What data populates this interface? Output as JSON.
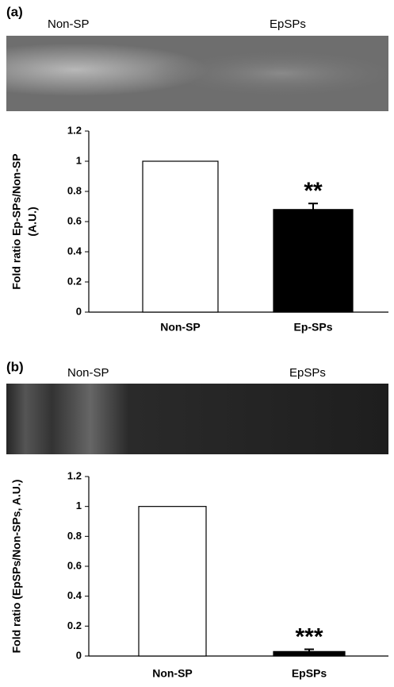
{
  "chart_data": [
    {
      "type": "bar",
      "panel_label": "(a)",
      "lane_labels": [
        "Non-SP",
        "EpSPs"
      ],
      "ylabel_lines": [
        "Fold ratio Ep-SPs/Non-SP",
        "(A.U.)"
      ],
      "categories": [
        "Non-SP",
        "Ep-SPs"
      ],
      "values": [
        1,
        0.68
      ],
      "errors": [
        null,
        0.04
      ],
      "colors": [
        "#ffffff",
        "#000000"
      ],
      "annotation": "**",
      "ylim": [
        0,
        1.2
      ],
      "yticks": [
        0,
        0.2,
        0.4,
        0.6,
        0.8,
        1,
        1.2
      ]
    },
    {
      "type": "bar",
      "panel_label": "(b)",
      "lane_labels": [
        "Non-SP",
        "EpSPs"
      ],
      "ylabel_lines": [
        "Fold ratio (EpSPs/Non-SPs, A.U.)"
      ],
      "categories": [
        "Non-SP",
        "EpSPs"
      ],
      "values": [
        1,
        0.03
      ],
      "errors": [
        null,
        0.015
      ],
      "colors": [
        "#ffffff",
        "#000000"
      ],
      "annotation": "***",
      "ylim": [
        0,
        1.2
      ],
      "yticks": [
        0,
        0.2,
        0.4,
        0.6,
        0.8,
        1,
        1.2
      ]
    }
  ]
}
